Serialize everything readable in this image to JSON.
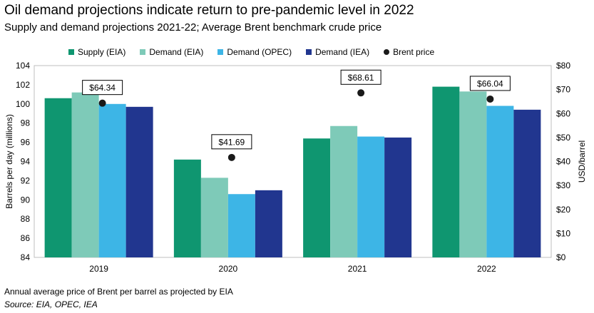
{
  "header": {
    "title": "Oil demand projections indicate return to pre-pandemic level in 2022",
    "subtitle": "Supply and demand projections 2021-22; Average Brent benchmark crude price"
  },
  "footer": {
    "note": "Annual average price of Brent per barrel as projected by EIA",
    "source": "Source: EIA, OPEC, IEA"
  },
  "chart_data": {
    "type": "bar",
    "categories": [
      "2019",
      "2020",
      "2021",
      "2022"
    ],
    "series": [
      {
        "name": "Supply (EIA)",
        "color": "#0f9670",
        "values": [
          100.6,
          94.2,
          96.4,
          101.8
        ]
      },
      {
        "name": "Demand (EIA)",
        "color": "#7ecab8",
        "values": [
          101.2,
          92.3,
          97.7,
          101.3
        ]
      },
      {
        "name": "Demand (OPEC)",
        "color": "#3db5e6",
        "values": [
          100.0,
          90.6,
          96.6,
          99.8
        ]
      },
      {
        "name": "Demand (IEA)",
        "color": "#21368f",
        "values": [
          99.7,
          91.0,
          96.5,
          99.4
        ]
      }
    ],
    "brent": {
      "name": "Brent price",
      "color": "#1a1a1a",
      "values": [
        64.34,
        41.69,
        68.61,
        66.04
      ],
      "labels": [
        "$64.34",
        "$41.69",
        "$68.61",
        "$66.04"
      ]
    },
    "ylabel": "Barrels per day (millions)",
    "ylim": [
      84,
      104
    ],
    "yticks": [
      "84",
      "86",
      "88",
      "90",
      "92",
      "94",
      "96",
      "98",
      "100",
      "102",
      "104"
    ],
    "y2label": "USD/barrel",
    "y2lim": [
      0,
      80
    ],
    "y2ticks": [
      "$0",
      "$10",
      "$20",
      "$30",
      "$40",
      "$50",
      "$60",
      "$70",
      "$80"
    ],
    "grid": false,
    "legend_position": "top"
  }
}
